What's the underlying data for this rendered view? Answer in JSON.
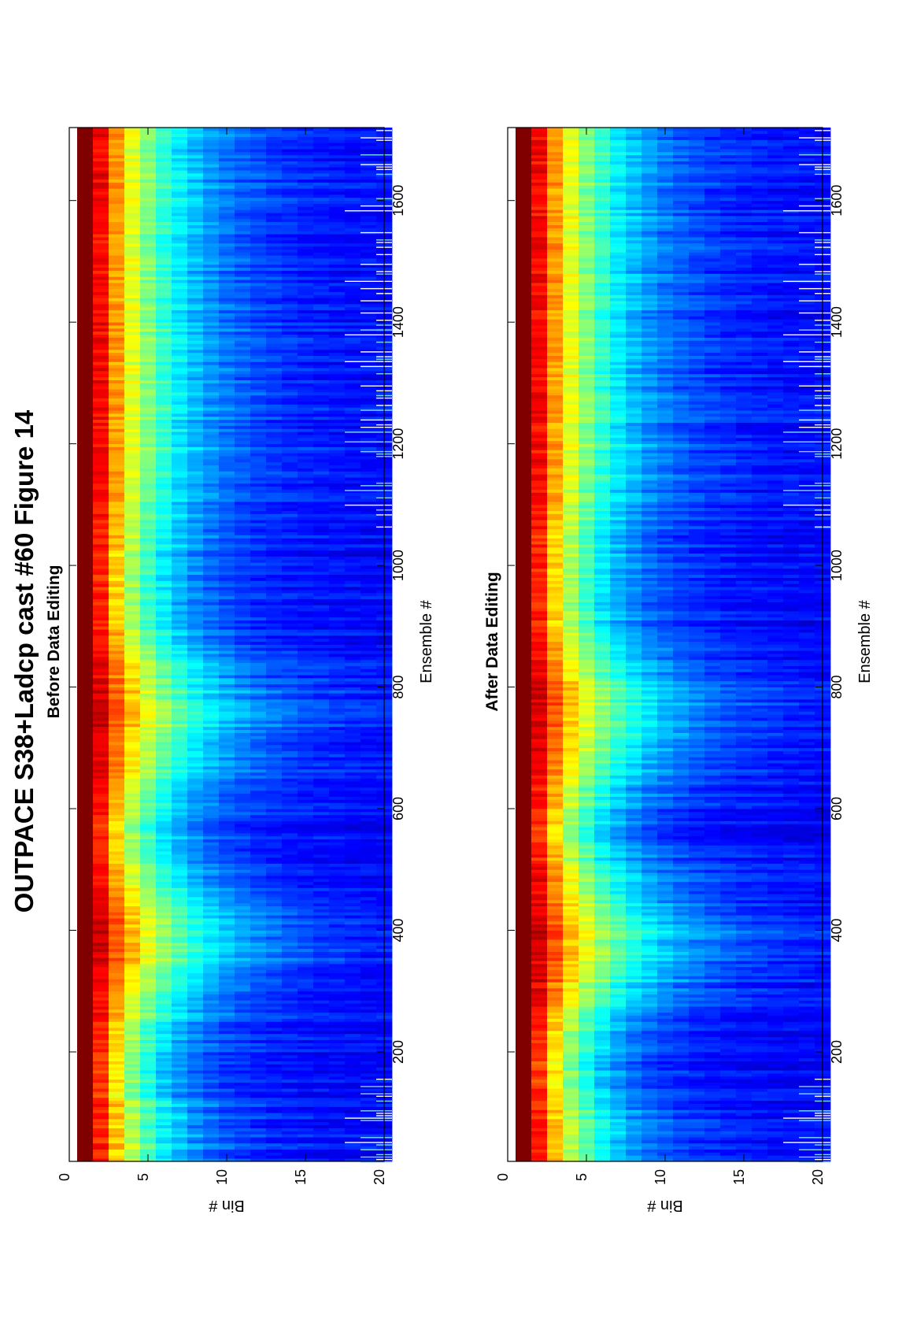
{
  "figure": {
    "title": "OUTPACE S38+Ladcp cast #60  Figure 14"
  },
  "chart_data": [
    {
      "type": "heatmap",
      "title": "Before Data Editing",
      "xlabel": "Ensemble #",
      "ylabel": "Bin #",
      "xlim": [
        20,
        1720
      ],
      "ylim": [
        0,
        20
      ],
      "x_ticks": [
        200,
        400,
        600,
        800,
        1000,
        1200,
        1400,
        1600
      ],
      "y_ticks": [
        0,
        5,
        10,
        15,
        20
      ],
      "x_tick_labels": [
        "200",
        "400",
        "600",
        "800",
        "1000",
        "1200",
        "1400",
        "1600"
      ],
      "y_tick_labels": [
        "0",
        "5",
        "10",
        "15",
        "20"
      ],
      "colormap": "jet",
      "grid": false,
      "legend": "none",
      "has_spurious_values": true
    },
    {
      "type": "heatmap",
      "title": "After Data Editing",
      "xlabel": "Ensemble #",
      "ylabel": "Bin #",
      "xlim": [
        20,
        1720
      ],
      "ylim": [
        0,
        20
      ],
      "x_ticks": [
        200,
        400,
        600,
        800,
        1000,
        1200,
        1400,
        1600
      ],
      "y_ticks": [
        0,
        5,
        10,
        15,
        20
      ],
      "x_tick_labels": [
        "200",
        "400",
        "600",
        "800",
        "1000",
        "1200",
        "1400",
        "1600"
      ],
      "y_tick_labels": [
        "0",
        "5",
        "10",
        "15",
        "20"
      ],
      "colormap": "jet",
      "grid": false,
      "legend": "none",
      "has_spurious_values": true
    }
  ]
}
